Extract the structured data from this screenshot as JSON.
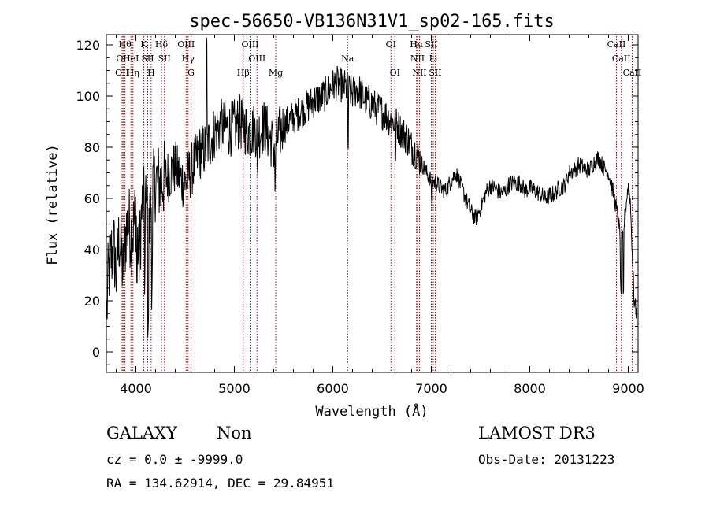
{
  "chart_data": {
    "type": "line",
    "title": "spec-56650-VB136N31V1_sp02-165.fits",
    "xlabel": "Wavelength (Å)",
    "ylabel": "Flux (relative)",
    "xlim": [
      3700,
      9100
    ],
    "ylim": [
      -8,
      124
    ],
    "xticks": [
      4000,
      5000,
      6000,
      7000,
      8000,
      9000
    ],
    "yticks": [
      0,
      20,
      40,
      60,
      80,
      100,
      120
    ],
    "grid": false,
    "line_color": "#000000",
    "marker_color": "#a00000",
    "anchors": [
      [
        3700,
        10
      ],
      [
        3720,
        30
      ],
      [
        3750,
        38
      ],
      [
        3780,
        40
      ],
      [
        3800,
        30
      ],
      [
        3830,
        45
      ],
      [
        3850,
        40
      ],
      [
        3870,
        30
      ],
      [
        3900,
        48
      ],
      [
        3930,
        50
      ],
      [
        3960,
        45
      ],
      [
        4000,
        55
      ],
      [
        4030,
        35
      ],
      [
        4060,
        55
      ],
      [
        4100,
        58
      ],
      [
        4130,
        45
      ],
      [
        4160,
        60
      ],
      [
        4200,
        67
      ],
      [
        4250,
        66
      ],
      [
        4300,
        68
      ],
      [
        4350,
        70
      ],
      [
        4400,
        72
      ],
      [
        4450,
        68
      ],
      [
        4500,
        66
      ],
      [
        4550,
        70
      ],
      [
        4600,
        74
      ],
      [
        4650,
        78
      ],
      [
        4700,
        79
      ],
      [
        4750,
        82
      ],
      [
        4800,
        86
      ],
      [
        4850,
        88
      ],
      [
        4900,
        88
      ],
      [
        4950,
        87
      ],
      [
        5000,
        88
      ],
      [
        5050,
        90
      ],
      [
        5100,
        88
      ],
      [
        5150,
        86
      ],
      [
        5200,
        87
      ],
      [
        5250,
        86
      ],
      [
        5300,
        88
      ],
      [
        5350,
        85
      ],
      [
        5400,
        80
      ],
      [
        5450,
        85
      ],
      [
        5500,
        88
      ],
      [
        5550,
        90
      ],
      [
        5600,
        92
      ],
      [
        5650,
        93
      ],
      [
        5700,
        95
      ],
      [
        5750,
        96
      ],
      [
        5800,
        98
      ],
      [
        5850,
        99
      ],
      [
        5900,
        100
      ],
      [
        5950,
        102
      ],
      [
        6000,
        104
      ],
      [
        6050,
        105
      ],
      [
        6100,
        104
      ],
      [
        6150,
        103
      ],
      [
        6200,
        101
      ],
      [
        6250,
        103
      ],
      [
        6300,
        100
      ],
      [
        6350,
        98
      ],
      [
        6400,
        97
      ],
      [
        6450,
        95
      ],
      [
        6500,
        94
      ],
      [
        6550,
        92
      ],
      [
        6600,
        90
      ],
      [
        6650,
        89
      ],
      [
        6700,
        86
      ],
      [
        6750,
        84
      ],
      [
        6800,
        80
      ],
      [
        6850,
        78
      ],
      [
        6900,
        74
      ],
      [
        6950,
        70
      ],
      [
        7000,
        67
      ],
      [
        7050,
        66
      ],
      [
        7100,
        64
      ],
      [
        7150,
        63
      ],
      [
        7200,
        67
      ],
      [
        7250,
        70
      ],
      [
        7300,
        65
      ],
      [
        7350,
        60
      ],
      [
        7400,
        55
      ],
      [
        7450,
        52
      ],
      [
        7500,
        56
      ],
      [
        7550,
        62
      ],
      [
        7600,
        65
      ],
      [
        7650,
        64
      ],
      [
        7700,
        62
      ],
      [
        7750,
        63
      ],
      [
        7800,
        66
      ],
      [
        7850,
        66
      ],
      [
        7900,
        66
      ],
      [
        7950,
        63
      ],
      [
        8000,
        64
      ],
      [
        8050,
        63
      ],
      [
        8100,
        62
      ],
      [
        8150,
        60
      ],
      [
        8200,
        61
      ],
      [
        8250,
        62
      ],
      [
        8300,
        64
      ],
      [
        8350,
        65
      ],
      [
        8400,
        70
      ],
      [
        8450,
        71
      ],
      [
        8500,
        73
      ],
      [
        8550,
        72
      ],
      [
        8600,
        71
      ],
      [
        8650,
        74
      ],
      [
        8700,
        76
      ],
      [
        8750,
        72
      ],
      [
        8800,
        70
      ],
      [
        8850,
        62
      ],
      [
        8880,
        56
      ],
      [
        8910,
        48
      ],
      [
        8940,
        42
      ],
      [
        8970,
        55
      ],
      [
        9000,
        65
      ],
      [
        9020,
        60
      ],
      [
        9040,
        40
      ],
      [
        9060,
        20
      ],
      [
        9100,
        12
      ]
    ],
    "lines": [
      {
        "label": "Hθ",
        "x": 3889,
        "row": 0
      },
      {
        "label": "OII",
        "x": 3870,
        "row": 1
      },
      {
        "label": "OII",
        "x": 3860,
        "row": 2
      },
      {
        "label": "HeI",
        "x": 3950,
        "row": 1
      },
      {
        "label": "Hη",
        "x": 3970,
        "row": 2
      },
      {
        "label": "K",
        "x": 4080,
        "row": 0
      },
      {
        "label": "SII",
        "x": 4120,
        "row": 1
      },
      {
        "label": "H",
        "x": 4155,
        "row": 2
      },
      {
        "label": "Hδ",
        "x": 4260,
        "row": 0
      },
      {
        "label": "SII",
        "x": 4290,
        "row": 1
      },
      {
        "label": "OIII",
        "x": 4510,
        "row": 0
      },
      {
        "label": "Hγ",
        "x": 4530,
        "row": 1
      },
      {
        "label": "G",
        "x": 4560,
        "row": 2
      },
      {
        "label": "Hβ",
        "x": 5090,
        "row": 2
      },
      {
        "label": "OIII",
        "x": 5160,
        "row": 0
      },
      {
        "label": "OIII",
        "x": 5230,
        "row": 1
      },
      {
        "label": "Mg",
        "x": 5420,
        "row": 2
      },
      {
        "label": "Na",
        "x": 6150,
        "row": 1
      },
      {
        "label": "OI",
        "x": 6590,
        "row": 0
      },
      {
        "label": "OI",
        "x": 6630,
        "row": 2
      },
      {
        "label": "Hα",
        "x": 6850,
        "row": 0
      },
      {
        "label": "NII",
        "x": 6860,
        "row": 1
      },
      {
        "label": "NII",
        "x": 6880,
        "row": 2
      },
      {
        "label": "SII",
        "x": 7000,
        "row": 0
      },
      {
        "label": "Li",
        "x": 7020,
        "row": 1
      },
      {
        "label": "SII",
        "x": 7040,
        "row": 2
      },
      {
        "label": "CaII",
        "x": 8880,
        "row": 0
      },
      {
        "label": "CaII",
        "x": 8930,
        "row": 1
      },
      {
        "label": "CaII",
        "x": 9040,
        "row": 2
      }
    ]
  },
  "info": {
    "object_class": "GALAXY",
    "subclass": "Non",
    "survey": "LAMOST DR3",
    "cz": "cz = 0.0 ± -9999.0",
    "obs_date": "Obs-Date: 20131223",
    "coords": "RA = 134.62914, DEC =  29.84951"
  }
}
